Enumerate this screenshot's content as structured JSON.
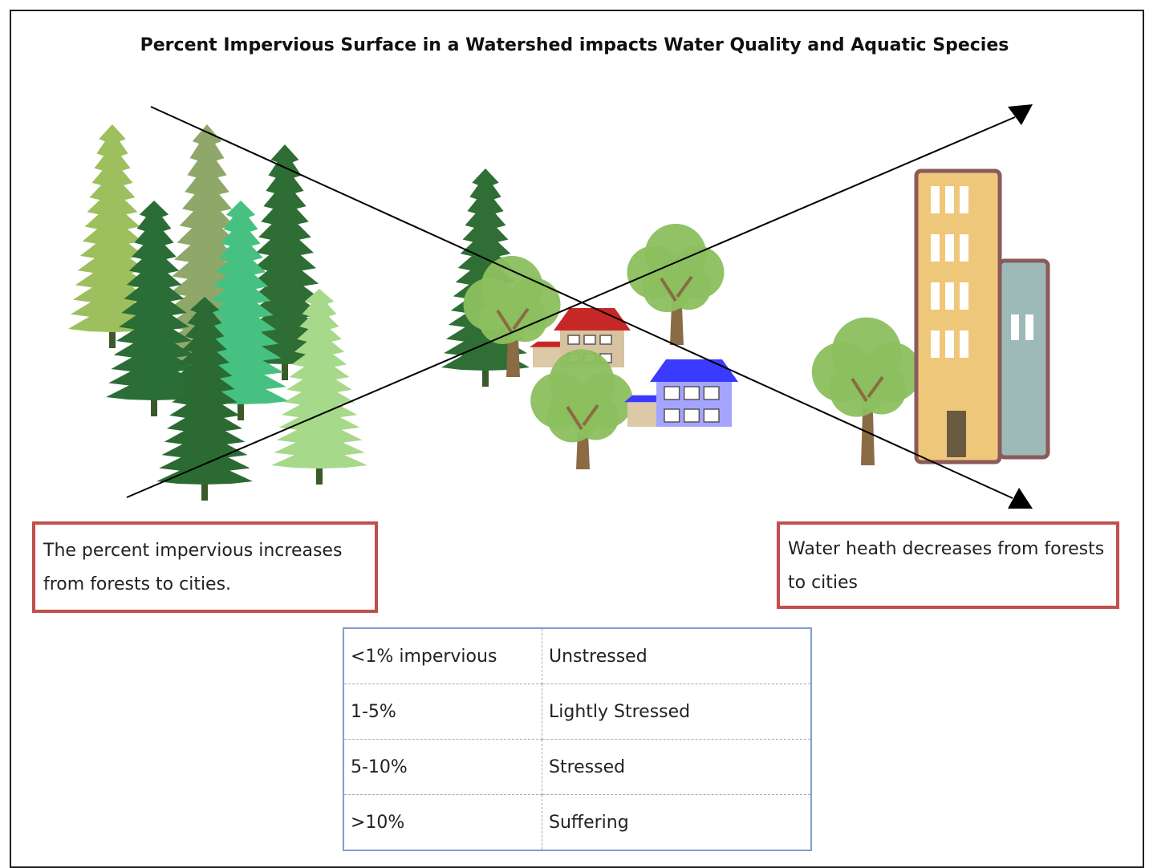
{
  "header": {
    "title": "Percent Impervious Surface in a Watershed  impacts Water Quality and Aquatic Species"
  },
  "notes": [
    "The percent impervious increases from forests to cities.",
    "Water heath decreases from forests to cities"
  ],
  "table": {
    "rows": [
      [
        "<1% impervious",
        "Unstressed"
      ],
      [
        "1-5%",
        "Lightly Stressed"
      ],
      [
        "5-10%",
        "Stressed"
      ],
      [
        ">10%",
        "Suffering"
      ]
    ]
  }
}
